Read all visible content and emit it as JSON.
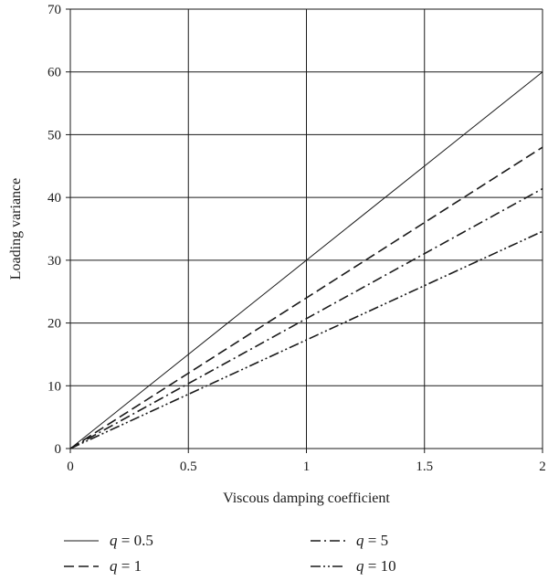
{
  "chart_data": {
    "type": "line",
    "title": "",
    "xlabel": "Viscous damping coefficient",
    "ylabel": "Loading variance",
    "xlim": [
      0,
      2
    ],
    "ylim": [
      0,
      70
    ],
    "xticks": [
      "0",
      "0.5",
      "1",
      "1.5",
      "2"
    ],
    "yticks": [
      "0",
      "10",
      "20",
      "30",
      "40",
      "50",
      "60",
      "70"
    ],
    "grid": true,
    "legend_position": "bottom",
    "series": [
      {
        "name": "q = 0.5",
        "q": "0.5",
        "dash": "solid",
        "x": [
          0,
          2
        ],
        "y": [
          0,
          60
        ]
      },
      {
        "name": "q = 1",
        "q": "1",
        "dash": "dashed",
        "x": [
          0,
          2
        ],
        "y": [
          0,
          48
        ]
      },
      {
        "name": "q = 5",
        "q": "5",
        "dash": "dash-dot",
        "x": [
          0,
          2
        ],
        "y": [
          0,
          41.4
        ]
      },
      {
        "name": "q = 10",
        "q": "10",
        "dash": "dash-dot-dot",
        "x": [
          0,
          2
        ],
        "y": [
          0,
          34.6
        ]
      }
    ],
    "line_color": "#1a1a1a",
    "grid_color": "#1a1a1a"
  }
}
